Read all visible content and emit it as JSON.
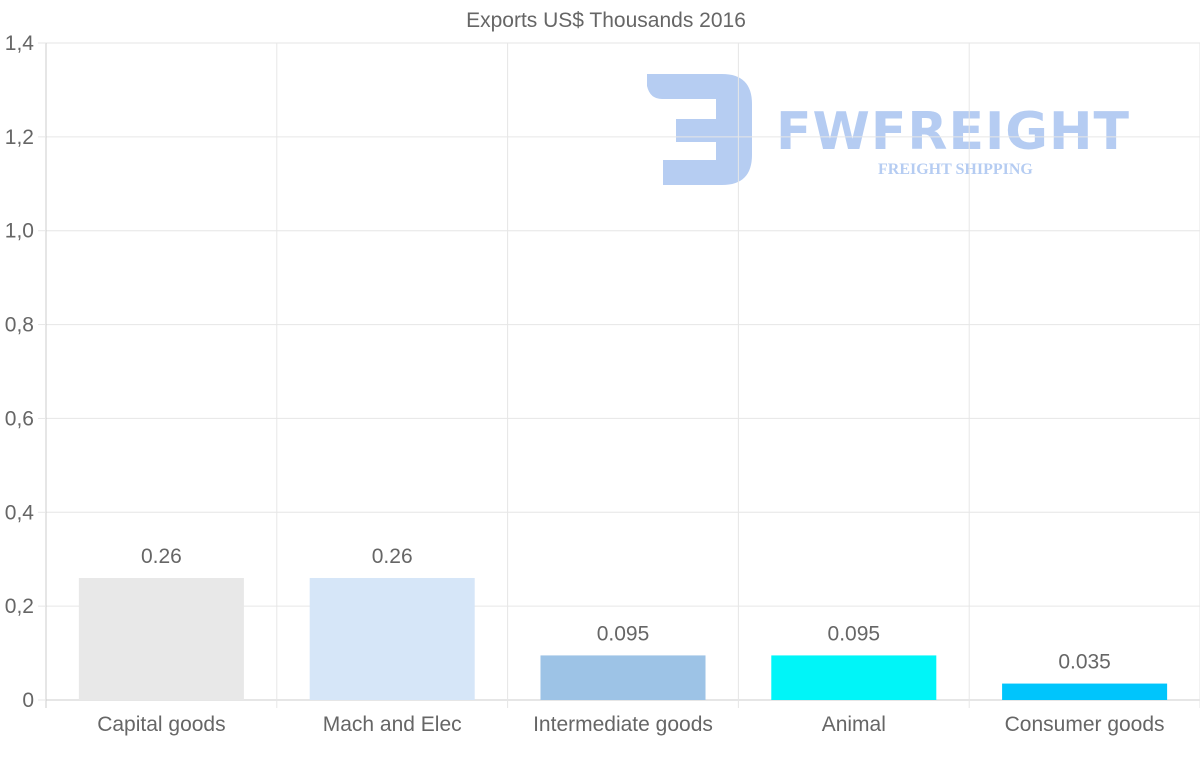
{
  "chart_data": {
    "type": "bar",
    "title": "Exports US$ Thousands 2016",
    "categories": [
      "Capital goods",
      "Mach and Elec",
      "Intermediate goods",
      "Animal",
      "Consumer goods"
    ],
    "values": [
      0.26,
      0.26,
      0.095,
      0.095,
      0.035
    ],
    "data_labels": [
      "0.26",
      "0.26",
      "0.095",
      "0.095",
      "0.035"
    ],
    "colors": [
      "#e8e8e8",
      "#d6e6f8",
      "#9dc3e6",
      "#00f5f8",
      "#00c5fc"
    ],
    "ylim": [
      0,
      1.4
    ],
    "yticks": [
      0,
      0.2,
      0.4,
      0.6,
      0.8,
      1.0,
      1.2,
      1.4
    ],
    "ytick_labels": [
      "0",
      "0,2",
      "0,4",
      "0,6",
      "0,8",
      "1,0",
      "1,2",
      "1,4"
    ],
    "xlabel": "",
    "ylabel": "",
    "grid": true,
    "legend": "none"
  },
  "watermark": {
    "brand": "FWFREIGHT",
    "tagline": "FREIGHT SHIPPING",
    "color": "#a9c4f0"
  },
  "colors": {
    "grid": "#e6e6e6",
    "axis": "#cccccc",
    "text": "#666666"
  }
}
